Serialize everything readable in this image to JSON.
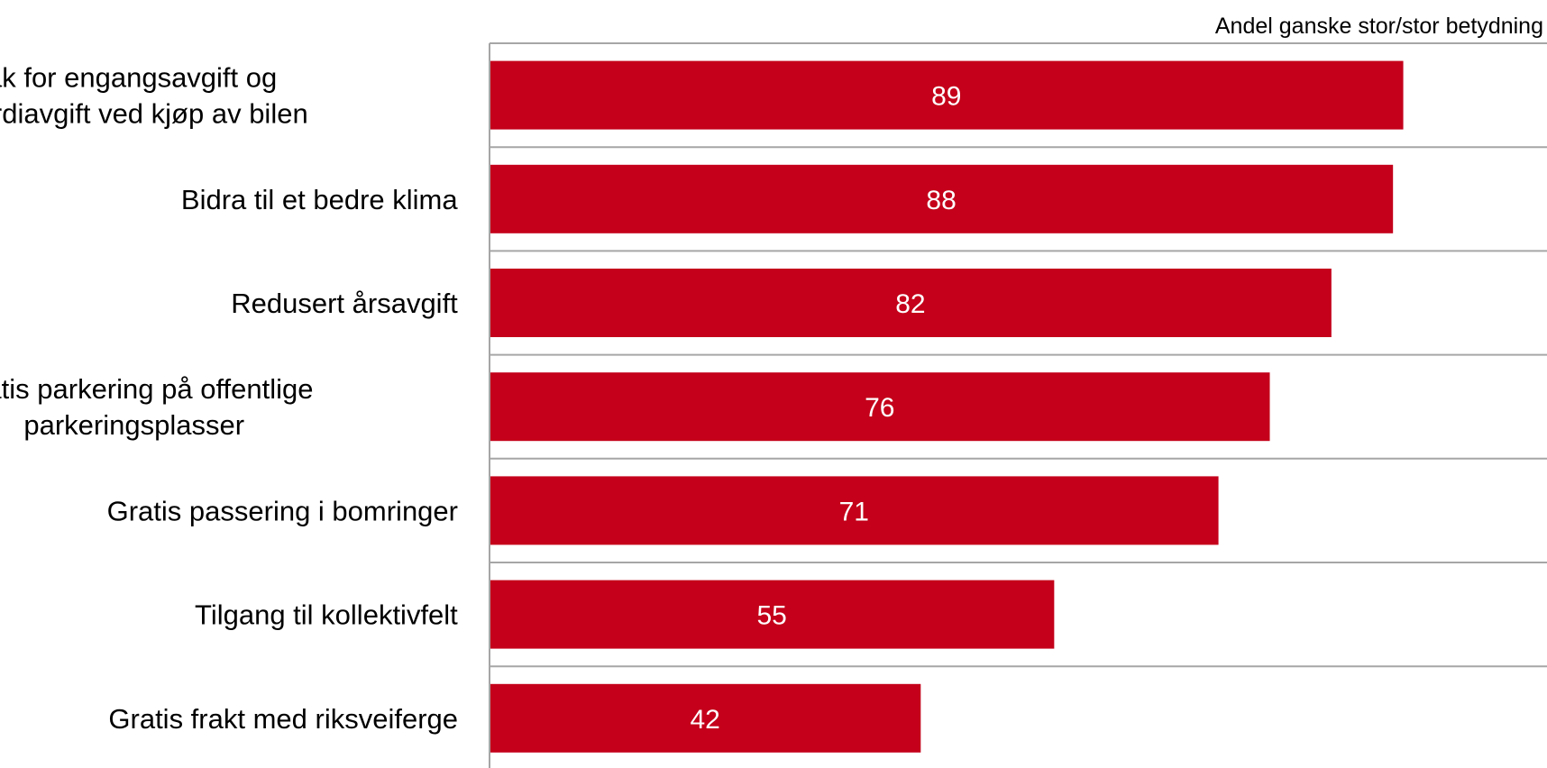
{
  "chart_data": {
    "type": "bar",
    "orientation": "horizontal",
    "title": "",
    "caption": "Andel ganske stor/stor betydning",
    "xlabel": "",
    "ylabel": "",
    "xlim": [
      0,
      103
    ],
    "categories": [
      [
        "Fritak for engangsavgift og",
        "merverdiavgift ved kjøp av bilen"
      ],
      [
        "Bidra til et bedre klima"
      ],
      [
        "Redusert årsavgift"
      ],
      [
        "Gratis parkering på offentlige",
        "parkeringsplasser"
      ],
      [
        "Gratis passering i bomringer"
      ],
      [
        "Tilgang til kollektivfelt"
      ],
      [
        "Gratis frakt med riksveiferge"
      ]
    ],
    "values": [
      89,
      88,
      82,
      76,
      71,
      55,
      42
    ],
    "data_labels": [
      "89",
      "88",
      "82",
      "76",
      "71",
      "55",
      "42"
    ],
    "bar_color": "#c4001a",
    "grid": true,
    "gridline_color": "#a6a6a6",
    "legend": "none"
  }
}
